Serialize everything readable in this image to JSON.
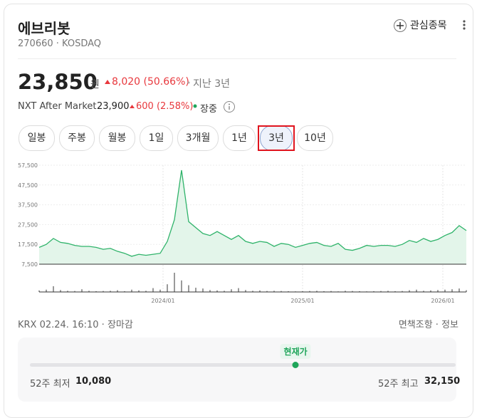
{
  "header": {
    "title": "에브리봇",
    "subtitle": "270660 · KOSDAQ",
    "watch_button": "관심종목"
  },
  "quote": {
    "price": "23,850",
    "unit": "원",
    "change": "8,020 (50.66%)",
    "period": "지난 3년",
    "after_market_label": "NXT After Market",
    "after_market_price": "23,900",
    "after_market_change": "600 (2.58%)",
    "status": "장중"
  },
  "tabs": [
    "일봉",
    "주봉",
    "월봉",
    "1일",
    "3개월",
    "1년",
    "3년",
    "10년"
  ],
  "selected_tab": 6,
  "chart": {
    "type": "line",
    "ylim": [
      7500,
      57500
    ],
    "yticks": [
      {
        "value": 57500,
        "label": "57,500"
      },
      {
        "value": 47500,
        "label": "47,500"
      },
      {
        "value": 37500,
        "label": "37,500"
      },
      {
        "value": 27500,
        "label": "27,500"
      },
      {
        "value": 17500,
        "label": "17,500"
      },
      {
        "value": 7500,
        "label": "7,500"
      }
    ],
    "xlim": [
      0,
      60
    ],
    "xticks": [
      {
        "value": 17.4,
        "label": "2024/01"
      },
      {
        "value": 37,
        "label": "2025/01"
      },
      {
        "value": 56.7,
        "label": "2026/01"
      }
    ],
    "price": [
      16000,
      17500,
      20500,
      18500,
      18000,
      17000,
      16500,
      16500,
      16000,
      15000,
      15500,
      14000,
      13000,
      11500,
      12500,
      12000,
      12500,
      13000,
      19000,
      30000,
      55000,
      29000,
      26000,
      23000,
      22000,
      24000,
      22000,
      20000,
      22000,
      19000,
      18000,
      19000,
      18500,
      16500,
      18000,
      17500,
      16000,
      17000,
      18000,
      18500,
      17000,
      16500,
      18000,
      15000,
      14500,
      15500,
      17000,
      16500,
      17000,
      17000,
      16500,
      17500,
      19500,
      18500,
      20500,
      19000,
      20000,
      22000,
      23500,
      27000,
      24500
    ],
    "volume": [
      8,
      12,
      30,
      10,
      6,
      5,
      14,
      6,
      4,
      5,
      6,
      9,
      4,
      12,
      8,
      6,
      20,
      12,
      40,
      100,
      60,
      35,
      22,
      18,
      10,
      8,
      6,
      14,
      20,
      10,
      6,
      8,
      5,
      6,
      5,
      4,
      3,
      4,
      5,
      6,
      4,
      5,
      3,
      6,
      5,
      4,
      3,
      4,
      5,
      6,
      4,
      5,
      9,
      12,
      6,
      8,
      10,
      12,
      14,
      18,
      9
    ],
    "line_color": "#2fb36a",
    "fill_color": "#e3f5ea",
    "volume_color": "#9a9a9a"
  },
  "footer": {
    "source": "KRX 02.24. 16:10 · 장마감",
    "links": "면책조항 · 정보"
  },
  "range": {
    "current_label": "현재가",
    "low_label": "52주 최저",
    "low": {
      "value": 10080,
      "label": "10,080"
    },
    "high_label": "52주 최고",
    "high": {
      "value": 32150,
      "label": "32,150"
    },
    "current": 23850
  }
}
